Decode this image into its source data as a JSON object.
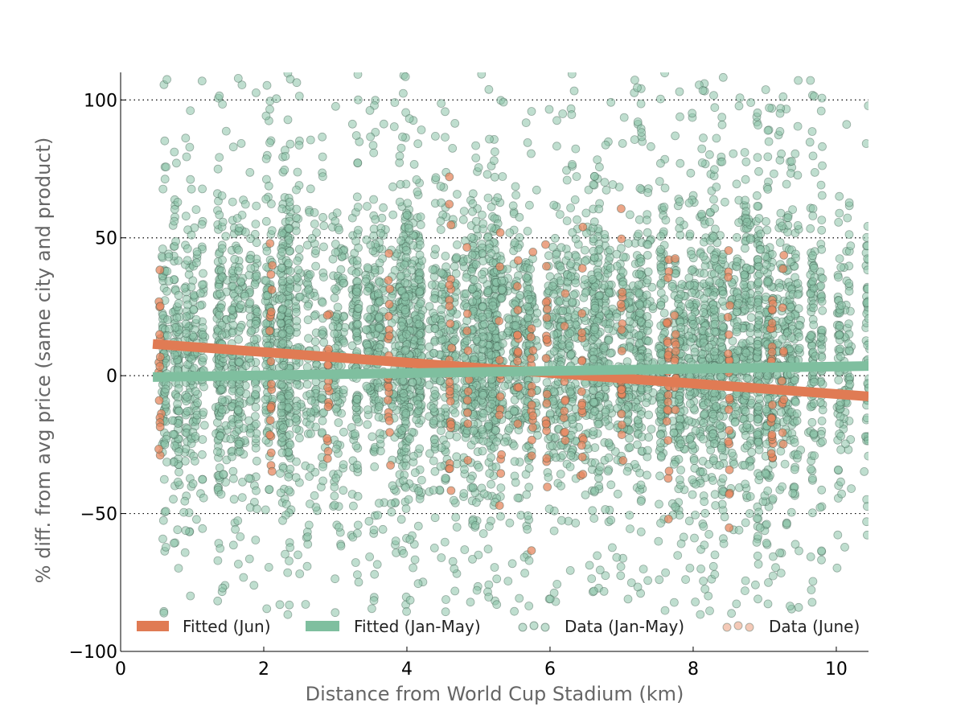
{
  "chart_data": {
    "type": "scatter",
    "title": "",
    "xlabel": "Distance from World Cup Stadium (km)",
    "ylabel": "% diff. from avg price (same city and product)",
    "xlim": [
      0,
      10.45
    ],
    "ylim": [
      -100,
      110
    ],
    "x_ticks": [
      0,
      2,
      4,
      6,
      8,
      10
    ],
    "y_ticks": [
      -100,
      -50,
      0,
      50,
      100
    ],
    "y_tick_labels": [
      "−100",
      "−50",
      "0",
      "50",
      "100"
    ],
    "grid": "horizontal dotted",
    "legend_position": "bottom (inside plot)",
    "colors": {
      "jun": "#e07b54",
      "jan_may": "#7fbf9f",
      "jan_may_points": "#8ac2a7",
      "jun_points": "#e6875f",
      "point_edge": "#3c5a4c"
    },
    "legend": [
      {
        "label": "Fitted (Jun)",
        "kind": "line",
        "color": "#e07b54"
      },
      {
        "label": "Fitted (Jan-May)",
        "kind": "line",
        "color": "#7fbf9f"
      },
      {
        "label": "Data (Jan-May)",
        "kind": "points",
        "color": "#8ac2a7"
      },
      {
        "label": "Data (June)",
        "kind": "points",
        "color": "#e6875f"
      }
    ],
    "series": [
      {
        "name": "Fitted (Jun)",
        "type": "line",
        "x": [
          0.45,
          10.45
        ],
        "y": [
          11.5,
          -7.5
        ]
      },
      {
        "name": "Fitted (Jan-May)",
        "type": "line",
        "x": [
          0.45,
          10.45
        ],
        "y": [
          -0.5,
          3.5
        ]
      },
      {
        "name": "Data (Jan-May)",
        "type": "scatter",
        "x_range": [
          0.45,
          10.45
        ],
        "y_range": [
          -87,
          110
        ],
        "distribution": "dense vertical bands of points at many distances, concentrated between about -45 and 70"
      },
      {
        "name": "Data (June)",
        "type": "scatter",
        "x_clusters": [
          0.55,
          2.1,
          2.9,
          3.75,
          4.6,
          4.85,
          5.3,
          5.55,
          5.75,
          5.95,
          6.2,
          6.45,
          7.0,
          7.65,
          7.75,
          8.5,
          9.1,
          9.25
        ],
        "y_range": [
          -78,
          105
        ],
        "distribution": "vertical columns of points at specific distances, concentrated between about -50 and 50"
      }
    ]
  }
}
